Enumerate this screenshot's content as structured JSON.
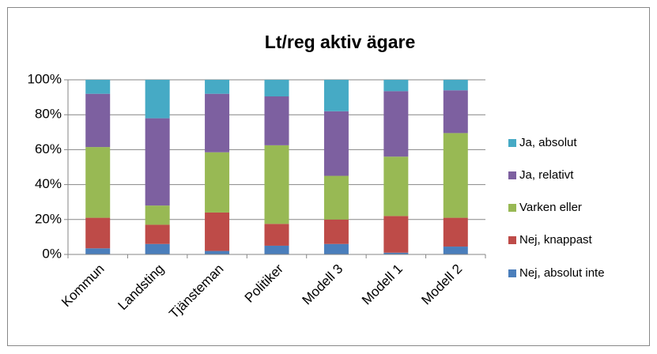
{
  "chart_data": {
    "type": "stacked_bar_100",
    "title": "Lt/reg aktiv ägare",
    "categories": [
      "Kommun",
      "Landsting",
      "Tjänsteman",
      "Politiker",
      "Modell 3",
      "Modell 1",
      "Modell 2"
    ],
    "series": [
      {
        "name": "Nej, absolut inte",
        "color": "#4a7ebb",
        "values": [
          3.5,
          6,
          2,
          5,
          6,
          1,
          4.5
        ]
      },
      {
        "name": "Nej, knappast",
        "color": "#be4b48",
        "values": [
          17.5,
          11,
          22,
          12.5,
          14,
          21,
          16.5
        ]
      },
      {
        "name": "Varken eller",
        "color": "#98b954",
        "values": [
          40.5,
          11,
          34.5,
          45,
          25,
          34,
          48.5
        ]
      },
      {
        "name": "Ja, relativt",
        "color": "#7d60a0",
        "values": [
          30.5,
          50,
          33.5,
          28,
          37,
          37.5,
          24.5
        ]
      },
      {
        "name": "Ja, absolut",
        "color": "#46aac5",
        "values": [
          8,
          22,
          8,
          9.5,
          18,
          6.5,
          6
        ]
      }
    ],
    "ylim": [
      0,
      100
    ],
    "yticks": [
      {
        "value": 0,
        "label": "0%"
      },
      {
        "value": 20,
        "label": "20%"
      },
      {
        "value": 40,
        "label": "40%"
      },
      {
        "value": 60,
        "label": "60%"
      },
      {
        "value": 80,
        "label": "80%"
      },
      {
        "value": 100,
        "label": "100%"
      }
    ],
    "grid": true,
    "legend": "right"
  }
}
